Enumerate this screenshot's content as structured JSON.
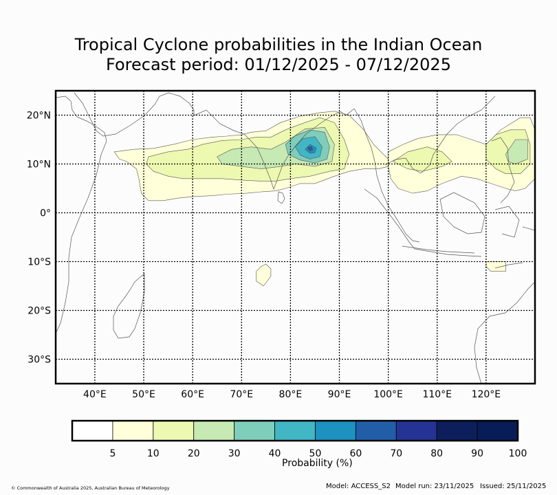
{
  "chart_data": {
    "type": "heatmap",
    "title": "Tropical Cyclone probabilities in the Indian Ocean",
    "subtitle": "Forecast period: 01/12/2025 - 07/12/2025",
    "x_range_deg_lon": [
      32,
      130
    ],
    "y_range_deg_lat": [
      -35,
      25
    ],
    "x_ticks": [
      {
        "value": 40,
        "label": "40°E"
      },
      {
        "value": 50,
        "label": "50°E"
      },
      {
        "value": 60,
        "label": "60°E"
      },
      {
        "value": 70,
        "label": "70°E"
      },
      {
        "value": 80,
        "label": "80°E"
      },
      {
        "value": 90,
        "label": "90°E"
      },
      {
        "value": 100,
        "label": "100°E"
      },
      {
        "value": 110,
        "label": "110°E"
      },
      {
        "value": 120,
        "label": "120°E"
      }
    ],
    "y_ticks": [
      {
        "value": 20,
        "label": "20°N"
      },
      {
        "value": 10,
        "label": "10°N"
      },
      {
        "value": 0,
        "label": "0°"
      },
      {
        "value": -10,
        "label": "10°S"
      },
      {
        "value": -20,
        "label": "20°S"
      },
      {
        "value": -30,
        "label": "30°S"
      }
    ],
    "grid": true,
    "colorbar": {
      "label": "Probability (%)",
      "bounds": [
        0,
        5,
        10,
        20,
        30,
        40,
        50,
        60,
        70,
        80,
        90,
        100
      ],
      "tick_labels": [
        "5",
        "10",
        "20",
        "30",
        "40",
        "50",
        "60",
        "70",
        "80",
        "90",
        "100"
      ],
      "colors": [
        "#ffffff",
        "#ffffd9",
        "#edf8b1",
        "#c7e9b4",
        "#7fcdbb",
        "#41b6c4",
        "#1d91c0",
        "#225ea8",
        "#253494",
        "#0c1f5c",
        "#081d58"
      ]
    },
    "probability_regions": [
      {
        "level": 5,
        "polygon": [
          [
            44,
            12.5
          ],
          [
            48,
            13
          ],
          [
            52,
            13.2
          ],
          [
            56,
            14
          ],
          [
            60,
            15
          ],
          [
            64,
            15.5
          ],
          [
            67,
            15.7
          ],
          [
            70,
            16
          ],
          [
            72,
            16.5
          ],
          [
            75,
            16.8
          ],
          [
            78,
            18.5
          ],
          [
            82,
            19.8
          ],
          [
            86,
            20.5
          ],
          [
            89,
            20.8
          ],
          [
            92,
            20
          ],
          [
            95,
            17
          ],
          [
            97,
            14
          ],
          [
            99,
            12
          ],
          [
            100,
            11
          ],
          [
            100,
            9.5
          ],
          [
            98,
            9
          ],
          [
            95,
            9
          ],
          [
            92,
            8.5
          ],
          [
            89,
            7.5
          ],
          [
            85,
            6
          ],
          [
            82,
            6
          ],
          [
            79,
            5
          ],
          [
            77,
            4.5
          ],
          [
            74,
            4.3
          ],
          [
            71,
            4
          ],
          [
            67,
            3.8
          ],
          [
            64,
            3.5
          ],
          [
            60,
            3.3
          ],
          [
            57,
            3
          ],
          [
            54,
            2.5
          ],
          [
            51,
            2.5
          ],
          [
            49.5,
            4
          ],
          [
            49,
            7
          ],
          [
            48.5,
            9
          ],
          [
            46.5,
            10.5
          ],
          [
            45,
            11
          ]
        ]
      },
      {
        "level": 5,
        "polygon": [
          [
            100,
            12.5
          ],
          [
            103,
            14
          ],
          [
            106,
            15.2
          ],
          [
            110,
            16
          ],
          [
            114,
            16
          ],
          [
            117,
            15
          ],
          [
            120,
            14
          ],
          [
            123,
            17
          ],
          [
            127,
            19.5
          ],
          [
            129,
            19.5
          ],
          [
            130,
            17
          ],
          [
            130,
            7
          ],
          [
            128,
            5
          ],
          [
            126,
            4.5
          ],
          [
            124,
            5
          ],
          [
            121,
            6
          ],
          [
            118,
            7
          ],
          [
            115,
            7.5
          ],
          [
            111,
            6
          ],
          [
            108,
            4.5
          ],
          [
            105,
            4
          ],
          [
            102,
            5
          ],
          [
            100.5,
            7
          ],
          [
            100,
            9.5
          ]
        ]
      },
      {
        "level": 5,
        "polygon": [
          [
            120,
            -10
          ],
          [
            124,
            -10
          ],
          [
            124,
            -12
          ],
          [
            121,
            -12
          ],
          [
            120,
            -11
          ]
        ]
      },
      {
        "level": 5,
        "polygon": [
          [
            74,
            -11
          ],
          [
            75,
            -10.5
          ],
          [
            76,
            -11.5
          ],
          [
            76,
            -13
          ],
          [
            74.5,
            -15
          ],
          [
            73,
            -14
          ],
          [
            73,
            -12
          ]
        ]
      },
      {
        "level": 10,
        "polygon": [
          [
            51,
            11.5
          ],
          [
            55,
            12.5
          ],
          [
            59,
            13
          ],
          [
            62,
            14
          ],
          [
            66,
            14.8
          ],
          [
            70,
            15
          ],
          [
            73,
            15.5
          ],
          [
            76,
            15.5
          ],
          [
            79,
            17
          ],
          [
            83,
            18.5
          ],
          [
            86,
            19.5
          ],
          [
            89,
            18.5
          ],
          [
            91,
            15
          ],
          [
            92,
            12
          ],
          [
            91,
            9
          ],
          [
            88,
            8.5
          ],
          [
            84,
            7.5
          ],
          [
            80,
            7
          ],
          [
            77,
            6.5
          ],
          [
            74,
            6.5
          ],
          [
            70,
            6.7
          ],
          [
            66,
            7
          ],
          [
            62,
            7
          ],
          [
            58,
            7
          ],
          [
            55,
            7.5
          ],
          [
            52,
            8.5
          ],
          [
            50.5,
            10
          ]
        ]
      },
      {
        "level": 10,
        "polygon": [
          [
            120,
            14
          ],
          [
            122,
            16
          ],
          [
            125,
            17
          ],
          [
            128,
            17
          ],
          [
            129,
            14
          ],
          [
            129,
            10
          ],
          [
            127,
            8
          ],
          [
            124,
            8
          ],
          [
            122,
            9
          ],
          [
            120,
            11
          ]
        ]
      },
      {
        "level": 10,
        "polygon": [
          [
            101,
            10.5
          ],
          [
            104,
            12.5
          ],
          [
            108,
            13.5
          ],
          [
            111,
            12.5
          ],
          [
            113,
            10.5
          ],
          [
            111,
            9.5
          ],
          [
            107,
            8.5
          ],
          [
            104,
            9
          ]
        ]
      },
      {
        "level": 20,
        "polygon": [
          [
            65,
            11.5
          ],
          [
            68,
            13
          ],
          [
            72,
            13.5
          ],
          [
            76,
            13
          ],
          [
            79,
            14.5
          ],
          [
            83,
            17.2
          ],
          [
            87,
            17.5
          ],
          [
            89,
            14
          ],
          [
            88.5,
            10.5
          ],
          [
            85,
            9.5
          ],
          [
            81,
            10
          ],
          [
            78,
            9.5
          ],
          [
            74,
            9
          ],
          [
            70,
            9.5
          ],
          [
            66,
            10
          ]
        ]
      },
      {
        "level": 20,
        "polygon": [
          [
            124,
            12
          ],
          [
            126,
            15
          ],
          [
            128.5,
            15
          ],
          [
            128.5,
            11
          ],
          [
            126,
            10
          ],
          [
            124.5,
            10.5
          ]
        ]
      },
      {
        "level": 30,
        "polygon": [
          [
            79,
            14
          ],
          [
            81,
            15.8
          ],
          [
            84,
            17
          ],
          [
            87,
            16.5
          ],
          [
            88,
            13.5
          ],
          [
            87.5,
            11
          ],
          [
            85,
            10.2
          ],
          [
            82,
            10.8
          ],
          [
            79.5,
            12
          ]
        ]
      },
      {
        "level": 40,
        "polygon": [
          [
            81,
            13.5
          ],
          [
            82.5,
            15.2
          ],
          [
            85,
            15.6
          ],
          [
            86.5,
            13.5
          ],
          [
            86,
            11.5
          ],
          [
            84,
            11
          ],
          [
            82,
            11.8
          ]
        ]
      },
      {
        "level": 50,
        "polygon": [
          [
            83,
            13
          ],
          [
            84,
            14
          ],
          [
            85.3,
            13.3
          ],
          [
            85,
            12.3
          ],
          [
            84,
            12.2
          ]
        ]
      },
      {
        "level": 60,
        "polygon": [
          [
            83.4,
            13.4
          ],
          [
            84.3,
            13.6
          ],
          [
            84.6,
            12.9
          ],
          [
            84,
            12.6
          ]
        ]
      }
    ]
  },
  "footer": {
    "copyright": "© Commonwealth of Australia 2025, Australian Bureau of Meteorology",
    "model": "Model: ACCESS_S2",
    "model_run": "Model run: 23/11/2025",
    "issued": "Issued: 25/11/2025"
  },
  "colors": {
    "frame": "#000000",
    "coast": "#555555",
    "region_outline": "#555555"
  }
}
